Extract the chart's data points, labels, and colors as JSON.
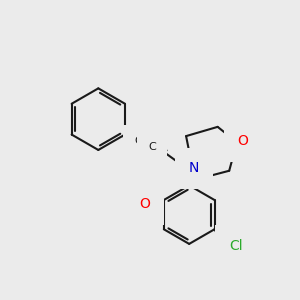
{
  "background_color": "#ebebeb",
  "bond_color": "#1a1a1a",
  "atom_colors": {
    "O": "#ff0000",
    "N": "#0000cc",
    "Cl": "#2aaa2a",
    "C_label": "#1a1a1a"
  },
  "figsize": [
    3.0,
    3.0
  ],
  "dpi": 100
}
